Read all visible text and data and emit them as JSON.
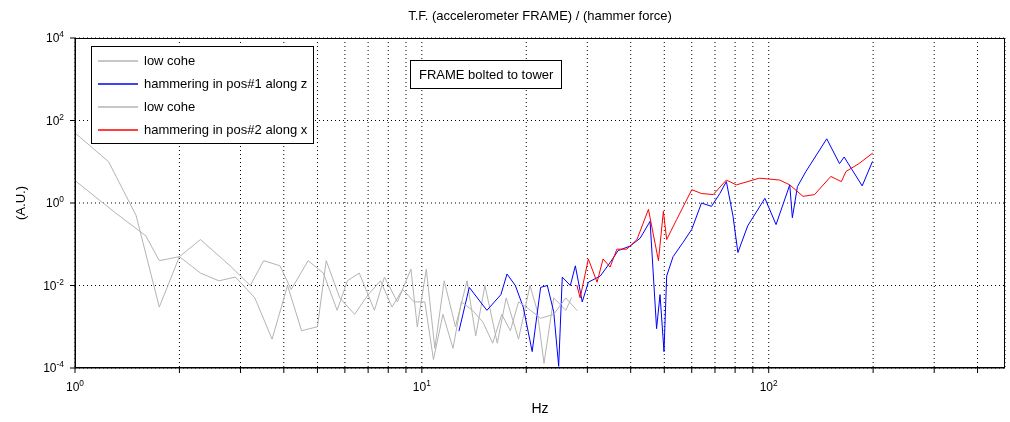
{
  "chart_data": {
    "type": "line",
    "title": "T.F. (accelerometer FRAME) / (hammer force)",
    "xlabel": "Hz",
    "ylabel": "(A.U.)",
    "annotations": [
      "FRAME bolted to tower"
    ],
    "log": "xy",
    "grid": true,
    "legend": "top left",
    "marker": "none",
    "line_style": "solid",
    "xlim": [
      1,
      480
    ],
    "ylim": [
      0.0001,
      10000
    ],
    "xticks": [
      {
        "value": 1,
        "label": "10$^{0}$"
      },
      {
        "value": 2,
        "label": null
      },
      {
        "value": 3,
        "label": null
      },
      {
        "value": 4,
        "label": null
      },
      {
        "value": 5,
        "label": null
      },
      {
        "value": 6,
        "label": null
      },
      {
        "value": 7,
        "label": null
      },
      {
        "value": 8,
        "label": null
      },
      {
        "value": 9,
        "label": null
      },
      {
        "value": 10,
        "label": "10$^{1}$"
      },
      {
        "value": 20,
        "label": null
      },
      {
        "value": 30,
        "label": null
      },
      {
        "value": 40,
        "label": null
      },
      {
        "value": 50,
        "label": null
      },
      {
        "value": 60,
        "label": null
      },
      {
        "value": 70,
        "label": null
      },
      {
        "value": 80,
        "label": null
      },
      {
        "value": 90,
        "label": null
      },
      {
        "value": 100,
        "label": "10$^{2}$"
      },
      {
        "value": 200,
        "label": null
      },
      {
        "value": 300,
        "label": null
      },
      {
        "value": 400,
        "label": null
      }
    ],
    "yticks": [
      {
        "value": 0.0001,
        "label": "10$^{-4}$"
      },
      {
        "value": 0.01,
        "label": "10$^{-2}$"
      },
      {
        "value": 1,
        "label": "10$^{0}$"
      },
      {
        "value": 100,
        "label": "10$^{2}$"
      },
      {
        "value": 10000,
        "label": "10$^{4}$"
      }
    ],
    "series": [
      {
        "name": "low cohe",
        "color": "#b4b4b4",
        "x": [
          1,
          1.25,
          1.5,
          1.75,
          2,
          2.3,
          2.8,
          3.2,
          3.5,
          3.9,
          4.2,
          4.7,
          5.2,
          5.7,
          6.1,
          6.6,
          7.3,
          7.8,
          8.5,
          9.3,
          9.7,
          10.3,
          10.9,
          11.6,
          12.5,
          13.5,
          14.3,
          15.2,
          16.5,
          17.5,
          19,
          20.5,
          21.5,
          22.5,
          24,
          26,
          27
        ],
        "values": [
          50,
          10,
          0.5,
          0.003,
          0.05,
          0.13,
          0.03,
          0.01,
          0.04,
          0.03,
          0.008,
          0.04,
          0.02,
          0.0025,
          0.013,
          0.02,
          0.0025,
          0.016,
          0.004,
          0.025,
          0.001,
          0.025,
          0.0003,
          0.013,
          0.001,
          0.013,
          0.0006,
          0.01,
          0.0004,
          0.005,
          0.0005,
          0.01,
          0.0025,
          0.00013,
          0.005,
          0.0025,
          0.005
        ]
      },
      {
        "name": "hammering in pos#1 along z",
        "color": "#0000ff",
        "x": [
          12.8,
          13.7,
          15.4,
          16.9,
          17.6,
          18.6,
          19.6,
          20.8,
          22,
          23,
          24,
          24.8,
          25.4,
          26.8,
          27.7,
          29,
          30.2,
          32.7,
          34.9,
          36.8,
          39.8,
          42.6,
          45.5,
          47.5,
          48.6,
          49.9,
          50.8,
          53,
          56.6,
          60,
          64,
          68.4,
          72.3,
          75.5,
          78.9,
          81.5,
          87,
          97.5,
          105,
          115,
          117,
          121,
          128,
          147,
          160,
          165,
          186,
          199
        ],
        "values": [
          0.0008,
          0.009,
          0.0025,
          0.006,
          0.019,
          0.01,
          0.003,
          0.00025,
          0.009,
          0.01,
          0.0023,
          0.00011,
          0.016,
          0.01,
          0.03,
          0.004,
          0.012,
          0.017,
          0.036,
          0.07,
          0.09,
          0.14,
          0.36,
          0.0009,
          0.006,
          0.00025,
          0.017,
          0.05,
          0.11,
          0.23,
          1,
          0.83,
          1.7,
          3.3,
          0.48,
          0.063,
          0.28,
          1.3,
          0.3,
          2.75,
          0.44,
          2.5,
          5.8,
          36,
          9,
          13,
          2.6,
          10
        ]
      },
      {
        "name": "low cohe",
        "color": "#b4b4b4",
        "x": [
          1,
          1.3,
          1.6,
          1.75,
          2,
          2.3,
          2.6,
          2.9,
          3.3,
          3.7,
          4.1,
          4.5,
          5,
          5.3,
          5.8,
          6.4,
          7,
          7.6,
          8.2,
          8.8,
          9.5,
          10.2,
          10.8,
          11.5,
          12.3,
          13,
          14,
          15,
          16,
          17,
          18,
          19,
          20,
          22,
          24,
          26,
          28
        ],
        "values": [
          3.5,
          0.6,
          0.16,
          0.04,
          0.05,
          0.02,
          0.013,
          0.016,
          0.005,
          0.0005,
          0.01,
          0.0008,
          0.001,
          0.04,
          0.005,
          0.002,
          0.006,
          0.013,
          0.003,
          0.008,
          0.004,
          0.004,
          0.00016,
          0.002,
          0.0003,
          0.004,
          0.0025,
          0.0013,
          0.0004,
          0.002,
          0.0008,
          0.004,
          0.003,
          0.0016,
          0.002,
          0.005,
          0.0025
        ]
      },
      {
        "name": "hammering in pos#2 along x",
        "color": "#ff0000",
        "x": [
          28,
          28.6,
          30.2,
          32,
          33.3,
          34.9,
          36.5,
          39,
          41.7,
          45,
          48.1,
          49.7,
          50.8,
          54.3,
          60,
          64,
          69.2,
          75.5,
          80.7,
          94,
          107.6,
          115,
          125.6,
          135.6,
          151,
          162,
          167,
          182,
          199
        ],
        "values": [
          0.01,
          0.005,
          0.044,
          0.012,
          0.044,
          0.028,
          0.076,
          0.076,
          0.13,
          0.7,
          0.04,
          0.63,
          0.13,
          0.4,
          2.1,
          1.7,
          1.6,
          3.6,
          2.75,
          4,
          3.6,
          2.75,
          1.45,
          1.6,
          4.4,
          3.3,
          5.8,
          9,
          16
        ]
      }
    ]
  }
}
